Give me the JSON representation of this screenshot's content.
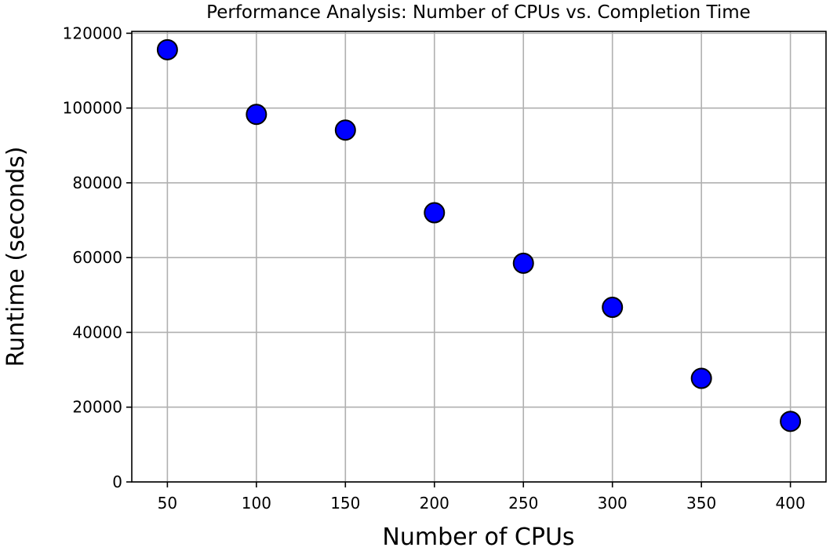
{
  "chart_data": {
    "type": "scatter",
    "title": "Performance Analysis: Number of CPUs vs. Completion Time",
    "xlabel": "Number of CPUs",
    "ylabel": "Runtime (seconds)",
    "x_ticks": [
      "50",
      "100",
      "150",
      "200",
      "250",
      "300",
      "350",
      "400"
    ],
    "y_ticks": [
      "0",
      "20000",
      "40000",
      "60000",
      "80000",
      "100000",
      "120000"
    ],
    "xlim": [
      30,
      420
    ],
    "ylim": [
      0,
      120500
    ],
    "grid": true,
    "marker_color": "#0000ff",
    "marker_edge_color": "#000000",
    "grid_color": "#b0b0b0",
    "points": [
      {
        "x": 50,
        "y": 115600
      },
      {
        "x": 100,
        "y": 98300
      },
      {
        "x": 150,
        "y": 94100
      },
      {
        "x": 200,
        "y": 72000
      },
      {
        "x": 250,
        "y": 58500
      },
      {
        "x": 300,
        "y": 46700
      },
      {
        "x": 350,
        "y": 27700
      },
      {
        "x": 400,
        "y": 16200
      }
    ]
  }
}
